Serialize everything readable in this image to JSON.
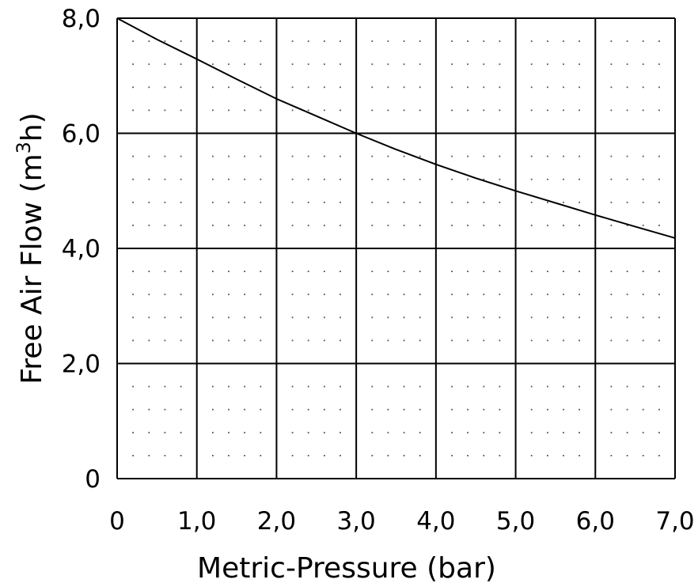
{
  "chart_data": {
    "type": "line",
    "title": "",
    "xlabel": "Metric-Pressure (bar)",
    "ylabel": {
      "main": "Free Air Flow (m",
      "superscript": "3",
      "end": "h)"
    },
    "xlim": [
      0,
      7
    ],
    "ylim": [
      0,
      8
    ],
    "x_ticks": [
      0,
      1,
      2,
      3,
      4,
      5,
      6,
      7
    ],
    "x_tick_labels": [
      "0",
      "1,0",
      "2,0",
      "3,0",
      "4,0",
      "5,0",
      "6,0",
      "7,0"
    ],
    "y_ticks": [
      0,
      2,
      4,
      6,
      8
    ],
    "y_tick_labels": [
      "0",
      "2,0",
      "4,0",
      "6,0",
      "8,0"
    ],
    "grid": true,
    "minor_grid": "dotted",
    "legend": "none",
    "series": [
      {
        "x": [
          0,
          0.5,
          1,
          1.5,
          2,
          2.5,
          3,
          3.5,
          4,
          4.5,
          5,
          5.5,
          6,
          6.5,
          7
        ],
        "values": [
          8.0,
          7.63,
          7.29,
          6.94,
          6.6,
          6.3,
          6.0,
          5.72,
          5.46,
          5.22,
          5.0,
          4.79,
          4.58,
          4.38,
          4.18
        ]
      }
    ],
    "colors": {
      "line": "#000000",
      "grid": "#000000",
      "minor": "#555555"
    }
  }
}
